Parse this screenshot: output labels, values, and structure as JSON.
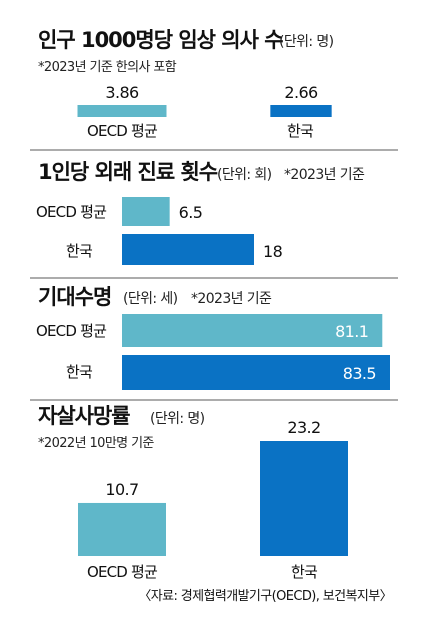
{
  "colors": {
    "oecd": "#5fb7c9",
    "korea": "#0a72c4",
    "divider": "#5a5a5a"
  },
  "source": "〈자료: 경제협력개발기구(OECD), 보건복지부〉",
  "chart_data": [
    {
      "type": "bar",
      "orientation": "horizontal",
      "title": "인구 1000명당 임상 의사 수",
      "unit": "(단위: 명)",
      "note": "*2023년 기준 한의사 포함",
      "categories": [
        "OECD 평균",
        "한국"
      ],
      "values": [
        3.86,
        2.66
      ]
    },
    {
      "type": "bar",
      "orientation": "horizontal",
      "title": "1인당 외래 진료 횟수",
      "unit": "(단위: 회)",
      "note": "*2023년 기준",
      "categories": [
        "OECD 평균",
        "한국"
      ],
      "values": [
        6.5,
        18
      ]
    },
    {
      "type": "bar",
      "orientation": "horizontal",
      "title": "기대수명",
      "unit": "(단위: 세)",
      "note": "*2023년 기준",
      "categories": [
        "OECD 평균",
        "한국"
      ],
      "values": [
        81.1,
        83.5
      ]
    },
    {
      "type": "bar",
      "orientation": "vertical",
      "title": "자살사망률",
      "unit": "(단위: 명)",
      "note": "*2022년 10만명 기준",
      "categories": [
        "OECD 평균",
        "한국"
      ],
      "values": [
        10.7,
        23.2
      ]
    }
  ]
}
